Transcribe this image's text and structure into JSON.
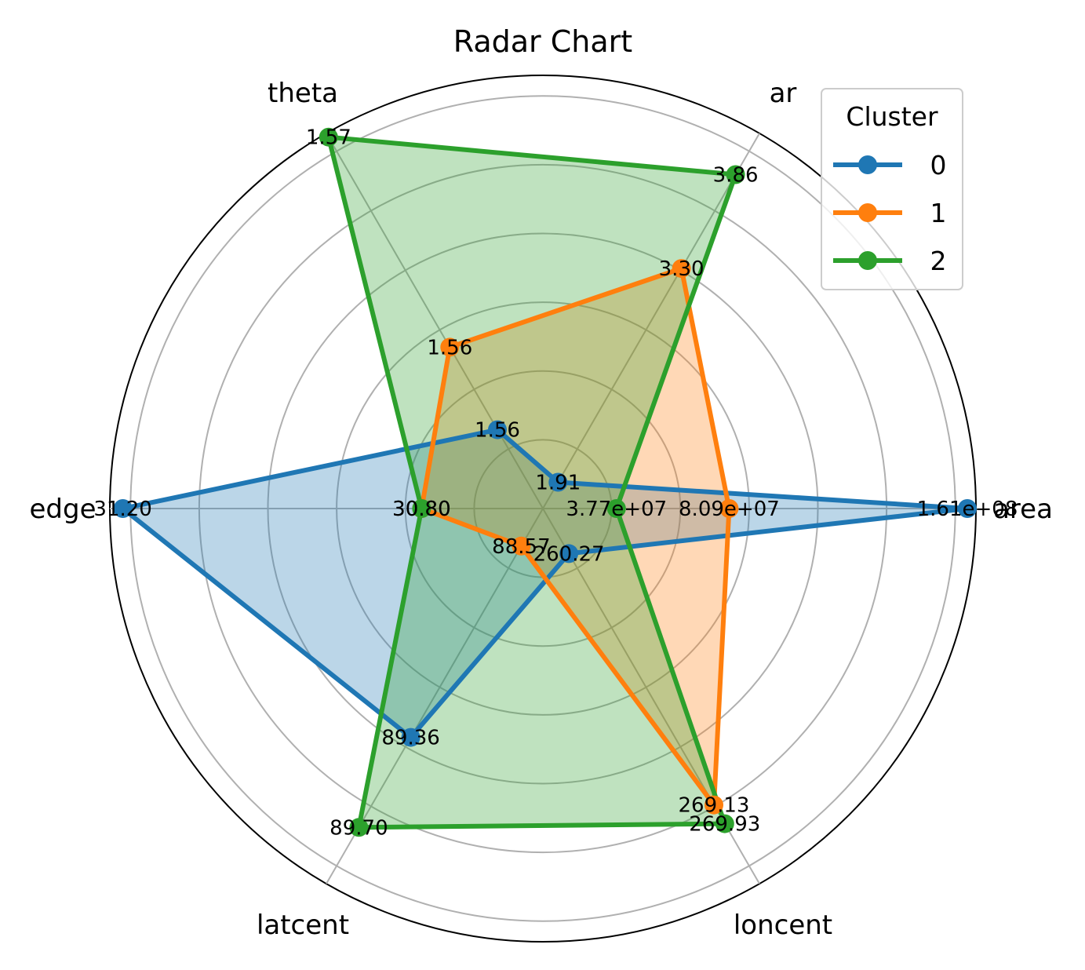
{
  "chart_data": {
    "type": "radar",
    "title": "Radar Chart",
    "axes": [
      "area",
      "ar",
      "theta",
      "edge",
      "latcent",
      "loncent"
    ],
    "legend": {
      "title": "Cluster",
      "placement": "top-right"
    },
    "grid": true,
    "series": [
      {
        "name": "0",
        "color": "#1f77b4",
        "r_fraction": [
          0.98,
          0.07,
          0.21,
          0.97,
          0.61,
          0.12
        ],
        "labels": [
          "1.61e+08",
          "1.91",
          "1.56",
          "31.20",
          "89.36",
          "260.27"
        ]
      },
      {
        "name": "1",
        "color": "#ff7f0e",
        "r_fraction": [
          0.43,
          0.64,
          0.43,
          0.28,
          0.1,
          0.79
        ],
        "labels": [
          "8.09e+07",
          "3.30",
          "1.56",
          "30.80",
          "88.57",
          "269.13"
        ]
      },
      {
        "name": "2",
        "color": "#2ca02c",
        "r_fraction": [
          0.17,
          0.89,
          0.99,
          0.28,
          0.85,
          0.84
        ],
        "labels": [
          "3.77e+07",
          "3.86",
          "1.57",
          "30.80",
          "89.70",
          "269.93"
        ]
      }
    ]
  }
}
